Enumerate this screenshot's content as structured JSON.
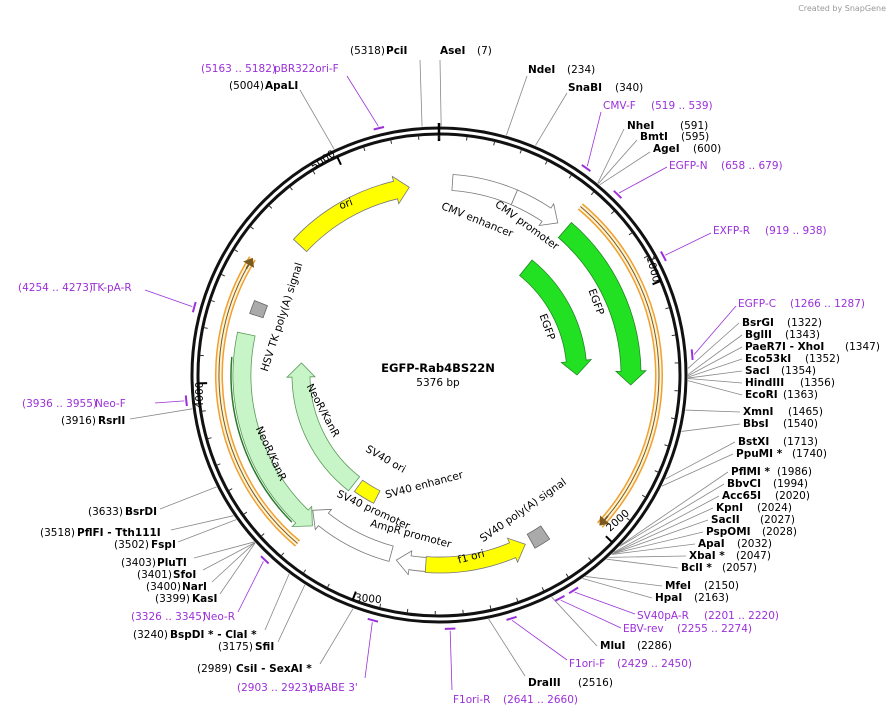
{
  "branding": "Created by SnapGene",
  "map": {
    "name": "EGFP-Rab4BS22N",
    "size": "5376 bp"
  },
  "enzymes": [
    {
      "name": "PciI",
      "position": "(5318)"
    },
    {
      "name": "AseI",
      "position": "(7)"
    },
    {
      "name": "NdeI",
      "position": "(234)"
    },
    {
      "name": "SnaBI",
      "position": "(340)"
    },
    {
      "name": "NheI",
      "position": "(591)"
    },
    {
      "name": "BmtI",
      "position": "(595)"
    },
    {
      "name": "AgeI",
      "position": "(600)"
    },
    {
      "name": "BsrGI",
      "position": "(1322)"
    },
    {
      "name": "BglII",
      "position": "(1343)"
    },
    {
      "name": "PaeR7I - XhoI",
      "position": "(1347)"
    },
    {
      "name": "Eco53kI",
      "position": "(1352)"
    },
    {
      "name": "SacI",
      "position": "(1354)"
    },
    {
      "name": "HindIII",
      "position": "(1356)"
    },
    {
      "name": "EcoRI",
      "position": "(1363)"
    },
    {
      "name": "XmnI",
      "position": "(1465)"
    },
    {
      "name": "BbsI",
      "position": "(1540)"
    },
    {
      "name": "BstXI",
      "position": "(1713)"
    },
    {
      "name": "PpuMI *",
      "position": "(1740)"
    },
    {
      "name": "PflMI *",
      "position": "(1986)"
    },
    {
      "name": "BbvCI",
      "position": "(1994)"
    },
    {
      "name": "Acc65I",
      "position": "(2020)"
    },
    {
      "name": "KpnI",
      "position": "(2024)"
    },
    {
      "name": "SacII",
      "position": "(2027)"
    },
    {
      "name": "PspOMI",
      "position": "(2028)"
    },
    {
      "name": "ApaI",
      "position": "(2032)"
    },
    {
      "name": "XbaI *",
      "position": "(2047)"
    },
    {
      "name": "BclI *",
      "position": "(2057)"
    },
    {
      "name": "MfeI",
      "position": "(2150)"
    },
    {
      "name": "HpaI",
      "position": "(2163)"
    },
    {
      "name": "MluI",
      "position": "(2286)"
    },
    {
      "name": "DraIII",
      "position": "(2516)"
    },
    {
      "name": "CsiI - SexAI *",
      "position": "(2989)"
    },
    {
      "name": "SfiI",
      "position": "(3175)"
    },
    {
      "name": "BspDI * - ClaI *",
      "position": "(3240)"
    },
    {
      "name": "KasI",
      "position": "(3399)"
    },
    {
      "name": "NarI",
      "position": "(3400)"
    },
    {
      "name": "SfoI",
      "position": "(3401)"
    },
    {
      "name": "PluTI",
      "position": "(3403)"
    },
    {
      "name": "FspI",
      "position": "(3502)"
    },
    {
      "name": "PflFI - Tth111I",
      "position": "(3518)"
    },
    {
      "name": "BsrDI",
      "position": "(3633)"
    },
    {
      "name": "RsrII",
      "position": "(3916)"
    },
    {
      "name": "ApaLI",
      "position": "(5004)"
    }
  ],
  "primers": [
    {
      "name": "pBR322ori-F",
      "range": "(5163 .. 5182)"
    },
    {
      "name": "CMV-F",
      "range": "(519 .. 539)"
    },
    {
      "name": "EGFP-N",
      "range": "(658 .. 679)"
    },
    {
      "name": "EXFP-R",
      "range": "(919 .. 938)"
    },
    {
      "name": "EGFP-C",
      "range": "(1266 .. 1287)"
    },
    {
      "name": "SV40pA-R",
      "range": "(2201 .. 2220)"
    },
    {
      "name": "EBV-rev",
      "range": "(2255 .. 2274)"
    },
    {
      "name": "F1ori-F",
      "range": "(2429 .. 2450)"
    },
    {
      "name": "F1ori-R",
      "range": "(2641 .. 2660)"
    },
    {
      "name": "pBABE 3'",
      "range": "(2903 .. 2923)"
    },
    {
      "name": "Neo-R",
      "range": "(3326 .. 3345)"
    },
    {
      "name": "Neo-F",
      "range": "(3936 .. 3955)"
    },
    {
      "name": "TK-pA-R",
      "range": "(4254 .. 4273)"
    }
  ],
  "features": [
    "ori",
    "CMV enhancer",
    "CMV promoter",
    "EGFP",
    "EGFP",
    "HSV TK poly(A) signal",
    "NeoR/KanR",
    "NeoR/KanR",
    "SV40 ori",
    "SV40 enhancer",
    "SV40 promoter",
    "AmpR promoter",
    "f1 ori",
    "SV40 poly(A) signal"
  ],
  "ticks": [
    "1000",
    "2000",
    "3000",
    "4000",
    "5000"
  ]
}
